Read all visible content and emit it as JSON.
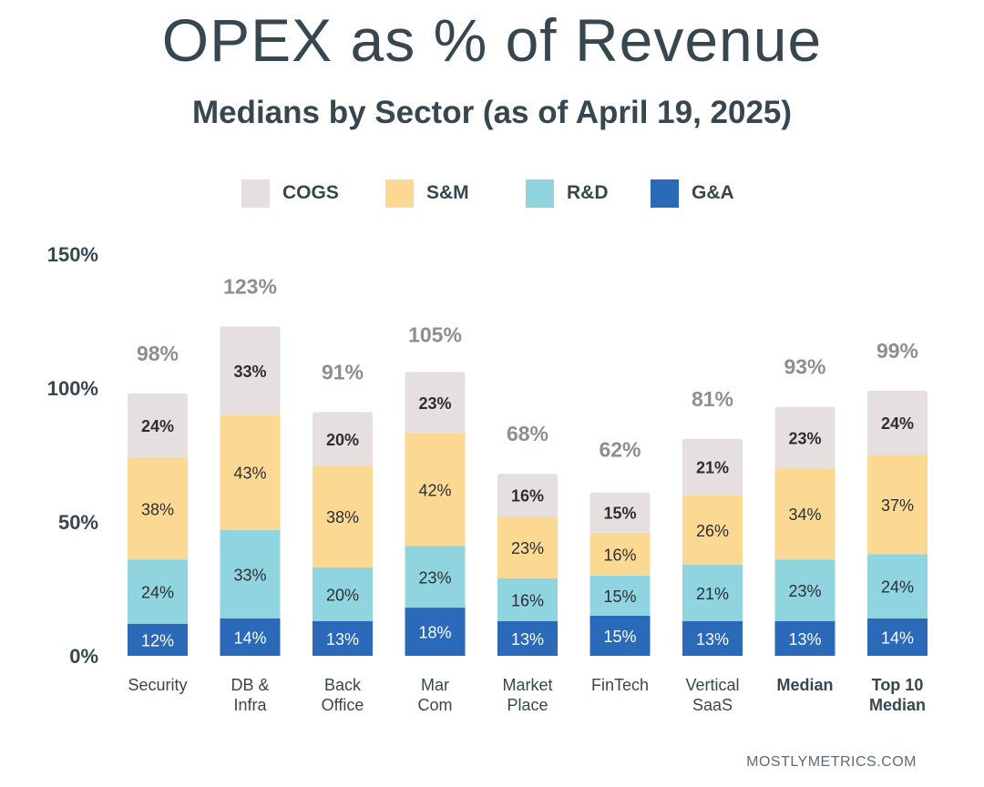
{
  "title": "OPEX as % of Revenue",
  "subtitle": "Medians by Sector (as of  April 19, 2025)",
  "footer": "MOSTLYMETRICS.COM",
  "colors": {
    "cogs": "#e5e0df",
    "sm": "#fcd993",
    "rd": "#90d4df",
    "ga": "#2a6ab8",
    "text": "#37474f",
    "total": "#8a8f93"
  },
  "legend": [
    {
      "name": "COGS",
      "color": "#e5e0df"
    },
    {
      "name": "S&M",
      "color": "#fcd993"
    },
    {
      "name": "R&D",
      "color": "#90d4df"
    },
    {
      "name": "G&A",
      "color": "#2a6ab8"
    }
  ],
  "chart_data": {
    "type": "bar",
    "stacked": true,
    "title": "OPEX as % of Revenue",
    "subtitle": "Medians by Sector (as of  April 19, 2025)",
    "xlabel": "",
    "ylabel": "",
    "ylim": [
      0,
      150
    ],
    "yticks": [
      0,
      50,
      100,
      150
    ],
    "ytick_labels": [
      "0%",
      "50%",
      "100%",
      "150%"
    ],
    "grid": false,
    "legend_position": "top",
    "categories": [
      {
        "lines": [
          "Security"
        ],
        "bold": false
      },
      {
        "lines": [
          "DB &",
          "Infra"
        ],
        "bold": false
      },
      {
        "lines": [
          "Back",
          "Office"
        ],
        "bold": false
      },
      {
        "lines": [
          "Mar",
          "Com"
        ],
        "bold": false
      },
      {
        "lines": [
          "Market",
          "Place"
        ],
        "bold": false
      },
      {
        "lines": [
          "FinTech"
        ],
        "bold": false
      },
      {
        "lines": [
          "Vertical",
          "SaaS"
        ],
        "bold": false
      },
      {
        "lines": [
          "Median"
        ],
        "bold": true
      },
      {
        "lines": [
          "Top 10",
          "Median"
        ],
        "bold": true
      }
    ],
    "series": [
      {
        "name": "G&A",
        "key": "ga",
        "values": [
          12,
          14,
          13,
          18,
          13,
          15,
          13,
          13,
          14
        ]
      },
      {
        "name": "R&D",
        "key": "rd",
        "values": [
          24,
          33,
          20,
          23,
          16,
          15,
          21,
          23,
          24
        ]
      },
      {
        "name": "S&M",
        "key": "sm",
        "values": [
          38,
          43,
          38,
          42,
          23,
          16,
          26,
          34,
          37
        ]
      },
      {
        "name": "COGS",
        "key": "cogs",
        "values": [
          24,
          33,
          20,
          23,
          16,
          15,
          21,
          23,
          24
        ]
      }
    ],
    "totals": [
      98,
      123,
      91,
      105,
      68,
      62,
      81,
      93,
      99
    ],
    "label_suffix": "%"
  }
}
